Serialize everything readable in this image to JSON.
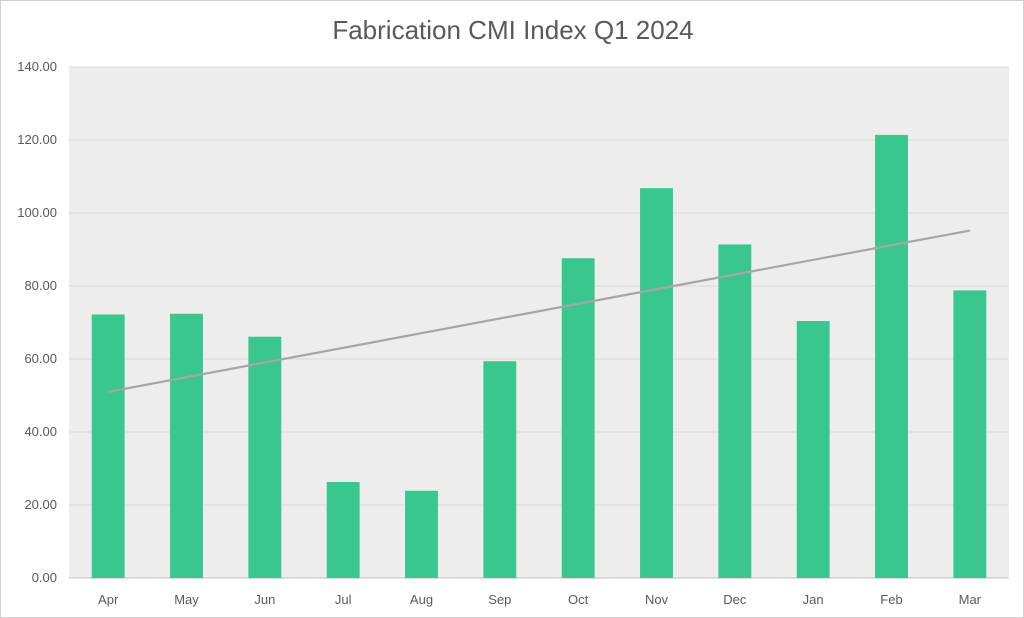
{
  "chart_data": {
    "type": "bar",
    "title": "Fabrication CMI Index Q1 2024",
    "xlabel": "",
    "ylabel": "",
    "categories": [
      "Apr",
      "May",
      "Jun",
      "Jul",
      "Aug",
      "Sep",
      "Oct",
      "Nov",
      "Dec",
      "Jan",
      "Feb",
      "Mar"
    ],
    "series": [
      {
        "values": [
          72.2,
          72.4,
          66.1,
          26.3,
          23.9,
          59.4,
          87.6,
          106.8,
          91.4,
          70.4,
          121.4,
          78.8
        ]
      }
    ],
    "trendline": {
      "type": "linear",
      "start": 51.0,
      "end": 95.2
    },
    "ylim": [
      0,
      140
    ],
    "yticks": [
      "0.00",
      "20.00",
      "40.00",
      "60.00",
      "80.00",
      "100.00",
      "120.00",
      "140.00"
    ],
    "grid": true,
    "legend": "none",
    "colors": {
      "bar": "#3AC78F",
      "trendline": "#A6A6A6",
      "plot_background": "#EDEDED",
      "gridline": "#D9D9D9",
      "text": "#595959"
    }
  }
}
